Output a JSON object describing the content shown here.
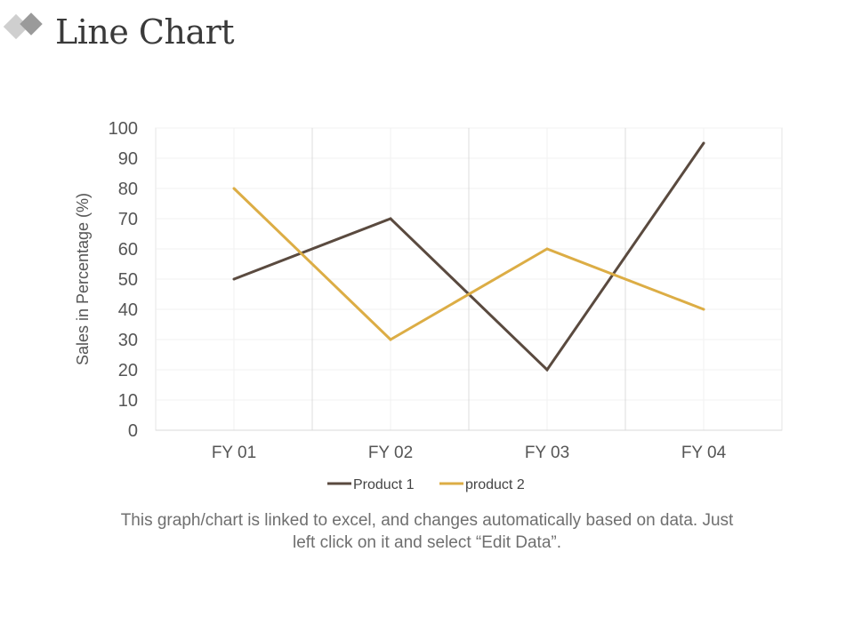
{
  "slide": {
    "title": "Line Chart",
    "caption": "This graph/chart is linked to excel, and changes automatically based on data. Just left click on it and select “Edit Data”."
  },
  "colors": {
    "product_1": "#5a4a3f",
    "product_2": "#dcad45",
    "grid": "#e6e6e6",
    "axis_text": "#555555"
  },
  "chart_data": {
    "type": "line",
    "categories": [
      "FY 01",
      "FY 02",
      "FY 03",
      "FY 04"
    ],
    "series": [
      {
        "name": "Product 1",
        "values": [
          50,
          70,
          20,
          95
        ]
      },
      {
        "name": "product 2",
        "values": [
          80,
          30,
          60,
          40
        ]
      }
    ],
    "title": "",
    "xlabel": "",
    "ylabel": "Sales in Percentage (%)",
    "ylim": [
      0,
      100
    ],
    "yticks": [
      "0",
      "10",
      "20",
      "30",
      "40",
      "50",
      "60",
      "70",
      "80",
      "90",
      "100"
    ],
    "grid": true,
    "legend": "bottom"
  }
}
